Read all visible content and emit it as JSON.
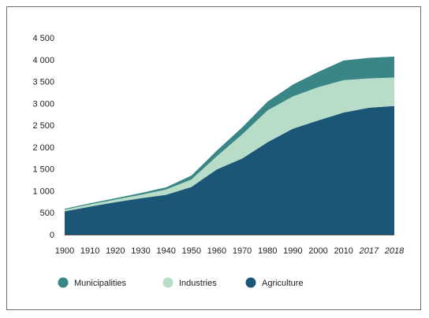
{
  "chart_data": {
    "type": "area",
    "stacked": true,
    "x": [
      "1900",
      "1910",
      "1920",
      "1930",
      "1940",
      "1950",
      "1960",
      "1970",
      "1980",
      "1990",
      "2000",
      "2010",
      "2017",
      "2018"
    ],
    "italic_x": [
      "2017",
      "2018"
    ],
    "series": [
      {
        "name": "Agriculture",
        "color": "#1b5676",
        "values": [
          530,
          640,
          740,
          830,
          910,
          1090,
          1490,
          1740,
          2110,
          2420,
          2610,
          2790,
          2900,
          2940
        ]
      },
      {
        "name": "Industries",
        "color": "#b7dcc8",
        "values": [
          40,
          50,
          60,
          80,
          120,
          170,
          300,
          550,
          730,
          740,
          760,
          740,
          670,
          650
        ]
      },
      {
        "name": "Municipalities",
        "color": "#3a8585",
        "values": [
          20,
          25,
          30,
          40,
          50,
          90,
          130,
          160,
          200,
          270,
          350,
          450,
          470,
          480
        ]
      }
    ],
    "legend_order": [
      "Municipalities",
      "Industries",
      "Agriculture"
    ],
    "legend_position": "bottom",
    "ylim": [
      0,
      4500
    ],
    "yticks": [
      "0",
      "500",
      "1 000",
      "1 500",
      "2 000",
      "2 500",
      "3 000",
      "3 500",
      "4 000",
      "4 500"
    ],
    "ytick_values": [
      0,
      500,
      1000,
      1500,
      2000,
      2500,
      3000,
      3500,
      4000,
      4500
    ],
    "grid": false
  }
}
